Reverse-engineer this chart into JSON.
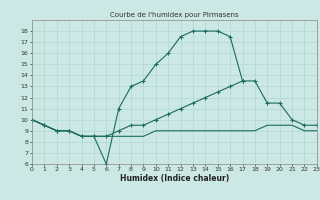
{
  "title": "Courbe de l'humidex pour Pirmasens",
  "xlabel": "Humidex (Indice chaleur)",
  "bg_color": "#cce8e4",
  "line_color": "#1a6b60",
  "grid_color": "#b0d8d4",
  "ylim": [
    6,
    19
  ],
  "xlim": [
    0,
    23
  ],
  "yticks": [
    6,
    7,
    8,
    9,
    10,
    11,
    12,
    13,
    14,
    15,
    16,
    17,
    18
  ],
  "xticks": [
    0,
    1,
    2,
    3,
    4,
    5,
    6,
    7,
    8,
    9,
    10,
    11,
    12,
    13,
    14,
    15,
    16,
    17,
    18,
    19,
    20,
    21,
    22,
    23
  ],
  "line1_x": [
    0,
    1,
    2,
    3,
    4,
    5,
    6,
    7,
    8,
    9,
    10,
    11,
    12,
    13,
    14,
    15,
    16,
    17
  ],
  "line1_y": [
    10,
    9.5,
    9,
    9,
    8.5,
    8.5,
    6,
    11,
    13,
    13.5,
    15,
    16,
    17.5,
    18,
    18,
    18,
    17.5,
    13.5
  ],
  "line2_x": [
    0,
    1,
    2,
    3,
    4,
    5,
    6,
    7,
    8,
    9,
    10,
    11,
    12,
    13,
    14,
    15,
    16,
    17,
    18,
    19,
    20,
    21,
    22,
    23
  ],
  "line2_y": [
    10,
    9.5,
    9,
    9,
    8.5,
    8.5,
    8.5,
    9,
    9.5,
    9.5,
    10,
    10.5,
    11,
    11.5,
    12,
    12.5,
    13,
    13.5,
    13.5,
    11.5,
    11.5,
    10,
    9.5,
    9.5
  ],
  "line3_x": [
    0,
    1,
    2,
    3,
    4,
    5,
    6,
    7,
    8,
    9,
    10,
    11,
    12,
    13,
    14,
    15,
    16,
    17,
    18,
    19,
    20,
    21,
    22,
    23
  ],
  "line3_y": [
    10,
    9.5,
    9,
    9,
    8.5,
    8.5,
    8.5,
    8.5,
    8.5,
    8.5,
    9,
    9,
    9,
    9,
    9,
    9,
    9,
    9,
    9,
    9.5,
    9.5,
    9.5,
    9,
    9
  ]
}
